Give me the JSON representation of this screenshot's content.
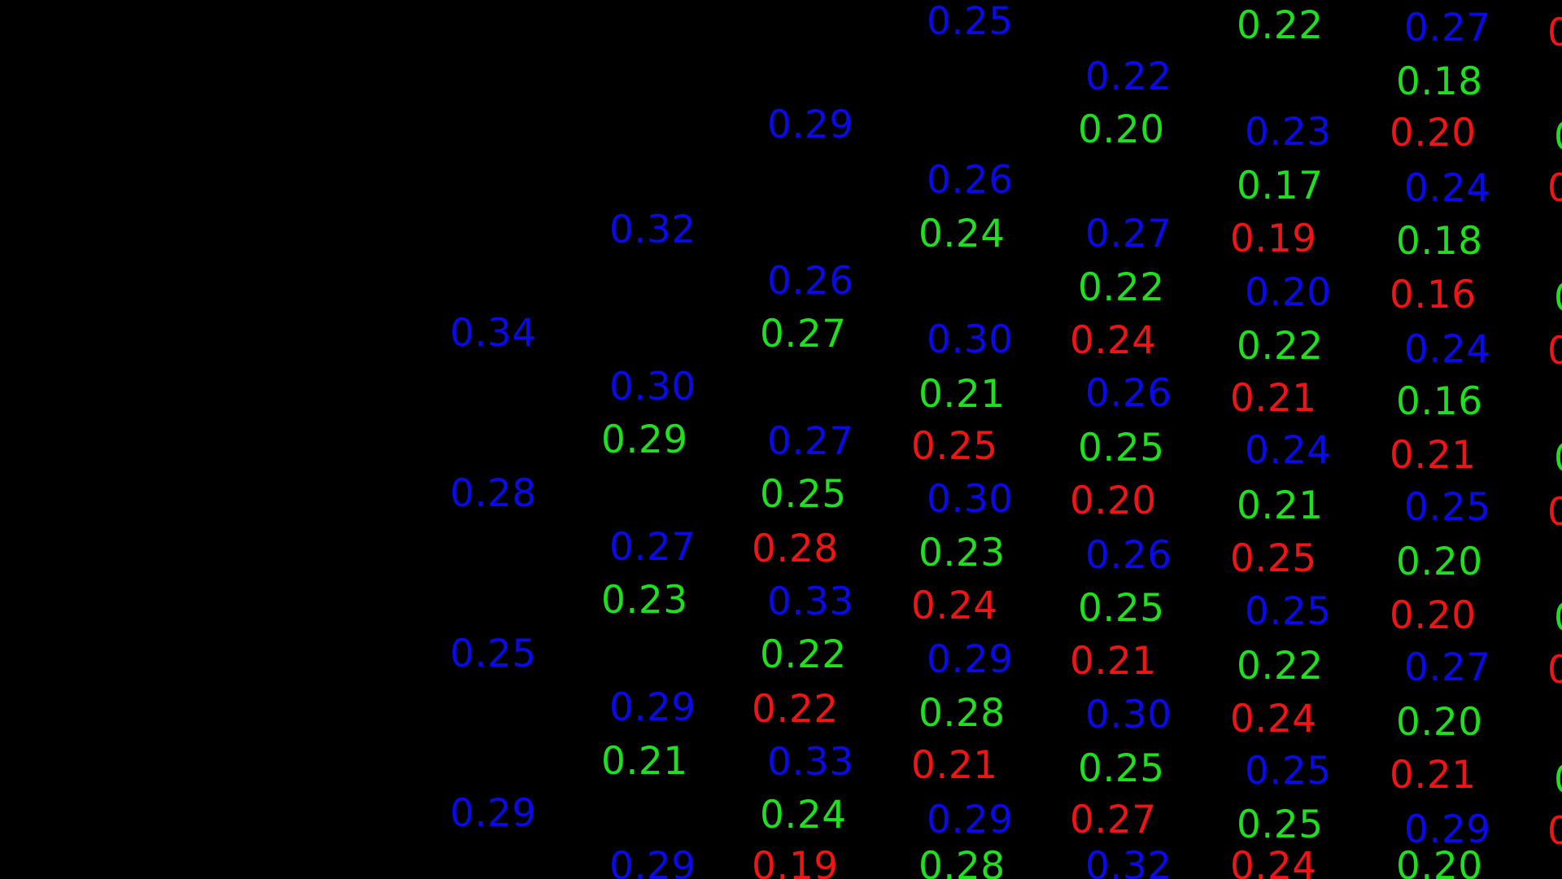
{
  "colors": {
    "background": "#000000",
    "blue": "#0a0ae8",
    "green": "#1fe01f",
    "red": "#f01414"
  },
  "values": [
    {
      "text": "0.34",
      "color": "blue"
    },
    {
      "text": "0.28",
      "color": "blue"
    },
    {
      "text": "0.25",
      "color": "blue"
    },
    {
      "text": "0.29",
      "color": "blue"
    },
    {
      "text": "0.32",
      "color": "blue"
    },
    {
      "text": "0.30",
      "color": "blue"
    },
    {
      "text": "0.29",
      "color": "green"
    },
    {
      "text": "0.27",
      "color": "blue"
    },
    {
      "text": "0.23",
      "color": "green"
    },
    {
      "text": "0.29",
      "color": "blue"
    },
    {
      "text": "0.21",
      "color": "green"
    },
    {
      "text": "0.29",
      "color": "blue"
    },
    {
      "text": "0.29",
      "color": "blue"
    },
    {
      "text": "0.26",
      "color": "blue"
    },
    {
      "text": "0.27",
      "color": "green"
    },
    {
      "text": "0.27",
      "color": "blue"
    },
    {
      "text": "0.25",
      "color": "green"
    },
    {
      "text": "0.28",
      "color": "red"
    },
    {
      "text": "0.33",
      "color": "blue"
    },
    {
      "text": "0.22",
      "color": "green"
    },
    {
      "text": "0.22",
      "color": "red"
    },
    {
      "text": "0.33",
      "color": "blue"
    },
    {
      "text": "0.24",
      "color": "green"
    },
    {
      "text": "0.19",
      "color": "red"
    },
    {
      "text": "0.25",
      "color": "blue"
    },
    {
      "text": "0.26",
      "color": "blue"
    },
    {
      "text": "0.24",
      "color": "green"
    },
    {
      "text": "0.30",
      "color": "blue"
    },
    {
      "text": "0.21",
      "color": "green"
    },
    {
      "text": "0.25",
      "color": "red"
    },
    {
      "text": "0.30",
      "color": "blue"
    },
    {
      "text": "0.23",
      "color": "green"
    },
    {
      "text": "0.24",
      "color": "red"
    },
    {
      "text": "0.29",
      "color": "blue"
    },
    {
      "text": "0.28",
      "color": "green"
    },
    {
      "text": "0.21",
      "color": "red"
    },
    {
      "text": "0.29",
      "color": "blue"
    },
    {
      "text": "0.28",
      "color": "green"
    },
    {
      "text": "0.22",
      "color": "blue"
    },
    {
      "text": "0.20",
      "color": "green"
    },
    {
      "text": "0.27",
      "color": "blue"
    },
    {
      "text": "0.22",
      "color": "green"
    },
    {
      "text": "0.24",
      "color": "red"
    },
    {
      "text": "0.26",
      "color": "blue"
    },
    {
      "text": "0.25",
      "color": "green"
    },
    {
      "text": "0.20",
      "color": "red"
    },
    {
      "text": "0.26",
      "color": "blue"
    },
    {
      "text": "0.25",
      "color": "green"
    },
    {
      "text": "0.21",
      "color": "red"
    },
    {
      "text": "0.30",
      "color": "blue"
    },
    {
      "text": "0.25",
      "color": "green"
    },
    {
      "text": "0.27",
      "color": "red"
    },
    {
      "text": "0.32",
      "color": "blue"
    },
    {
      "text": "0.22",
      "color": "green"
    },
    {
      "text": "0.23",
      "color": "blue"
    },
    {
      "text": "0.17",
      "color": "green"
    },
    {
      "text": "0.19",
      "color": "red"
    },
    {
      "text": "0.20",
      "color": "blue"
    },
    {
      "text": "0.22",
      "color": "green"
    },
    {
      "text": "0.21",
      "color": "red"
    },
    {
      "text": "0.24",
      "color": "blue"
    },
    {
      "text": "0.21",
      "color": "green"
    },
    {
      "text": "0.25",
      "color": "red"
    },
    {
      "text": "0.25",
      "color": "blue"
    },
    {
      "text": "0.22",
      "color": "green"
    },
    {
      "text": "0.24",
      "color": "red"
    },
    {
      "text": "0.25",
      "color": "blue"
    },
    {
      "text": "0.25",
      "color": "green"
    },
    {
      "text": "0.24",
      "color": "red"
    },
    {
      "text": "0.27",
      "color": "blue"
    },
    {
      "text": "0.18",
      "color": "green"
    },
    {
      "text": "0.20",
      "color": "red"
    },
    {
      "text": "0.24",
      "color": "blue"
    },
    {
      "text": "0.18",
      "color": "green"
    },
    {
      "text": "0.16",
      "color": "red"
    },
    {
      "text": "0.24",
      "color": "blue"
    },
    {
      "text": "0.16",
      "color": "green"
    },
    {
      "text": "0.21",
      "color": "red"
    },
    {
      "text": "0.25",
      "color": "blue"
    },
    {
      "text": "0.20",
      "color": "green"
    },
    {
      "text": "0.20",
      "color": "red"
    },
    {
      "text": "0.27",
      "color": "blue"
    },
    {
      "text": "0.20",
      "color": "green"
    },
    {
      "text": "0.21",
      "color": "red"
    },
    {
      "text": "0.29",
      "color": "blue"
    },
    {
      "text": "0.20",
      "color": "green"
    },
    {
      "text": "0",
      "color": "red"
    },
    {
      "text": "0",
      "color": "green"
    },
    {
      "text": "0",
      "color": "red"
    },
    {
      "text": "0",
      "color": "green"
    },
    {
      "text": "0",
      "color": "red"
    },
    {
      "text": "0",
      "color": "green"
    },
    {
      "text": "0",
      "color": "red"
    },
    {
      "text": "0",
      "color": "green"
    },
    {
      "text": "0",
      "color": "red"
    },
    {
      "text": "0",
      "color": "green"
    },
    {
      "text": "0",
      "color": "red"
    }
  ]
}
